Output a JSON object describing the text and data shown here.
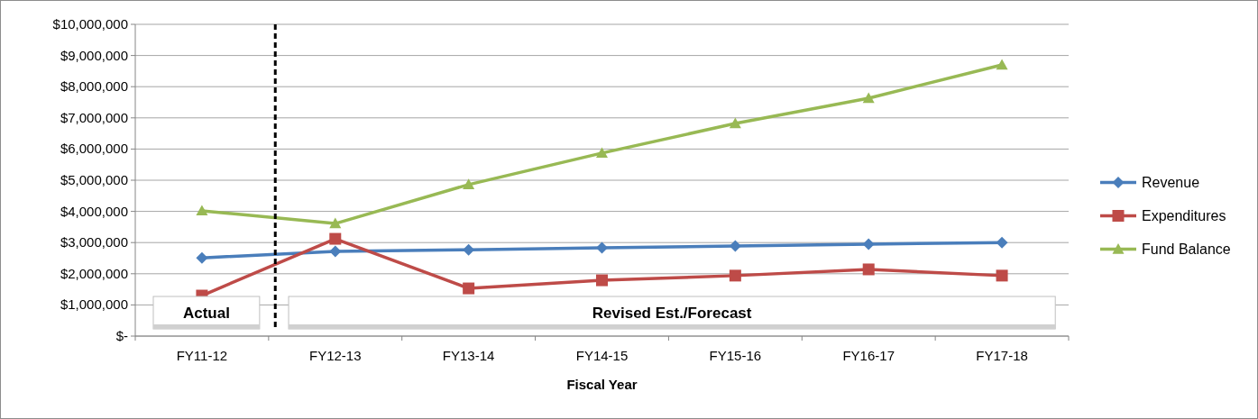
{
  "chart_data": {
    "type": "line",
    "xlabel": "Fiscal Year",
    "categories": [
      "FY11-12",
      "FY12-13",
      "FY13-14",
      "FY14-15",
      "FY15-16",
      "FY16-17",
      "FY17-18"
    ],
    "series": [
      {
        "name": "Revenue",
        "color": "#4a7ebb",
        "marker": "diamond",
        "values": [
          2510000,
          2720000,
          2770000,
          2830000,
          2890000,
          2950000,
          3000000
        ]
      },
      {
        "name": "Expenditures",
        "color": "#be4b48",
        "marker": "square",
        "values": [
          1300000,
          3120000,
          1530000,
          1790000,
          1940000,
          2140000,
          1940000
        ]
      },
      {
        "name": "Fund Balance",
        "color": "#98b954",
        "marker": "triangle",
        "values": [
          4020000,
          3610000,
          4860000,
          5870000,
          6820000,
          7630000,
          8700000
        ]
      }
    ],
    "ylim": [
      0,
      10000000
    ],
    "yticks": [
      {
        "value": 0,
        "label": "$-"
      },
      {
        "value": 1000000,
        "label": "$1,000,000"
      },
      {
        "value": 2000000,
        "label": "$2,000,000"
      },
      {
        "value": 3000000,
        "label": "$3,000,000"
      },
      {
        "value": 4000000,
        "label": "$4,000,000"
      },
      {
        "value": 5000000,
        "label": "$5,000,000"
      },
      {
        "value": 6000000,
        "label": "$6,000,000"
      },
      {
        "value": 7000000,
        "label": "$7,000,000"
      },
      {
        "value": 8000000,
        "label": "$8,000,000"
      },
      {
        "value": 9000000,
        "label": "$9,000,000"
      },
      {
        "value": 10000000,
        "label": "$10,000,000"
      }
    ],
    "grid": "y",
    "legend": "right",
    "annotations": [
      "Actual",
      "Revised Est./Forecast"
    ]
  }
}
